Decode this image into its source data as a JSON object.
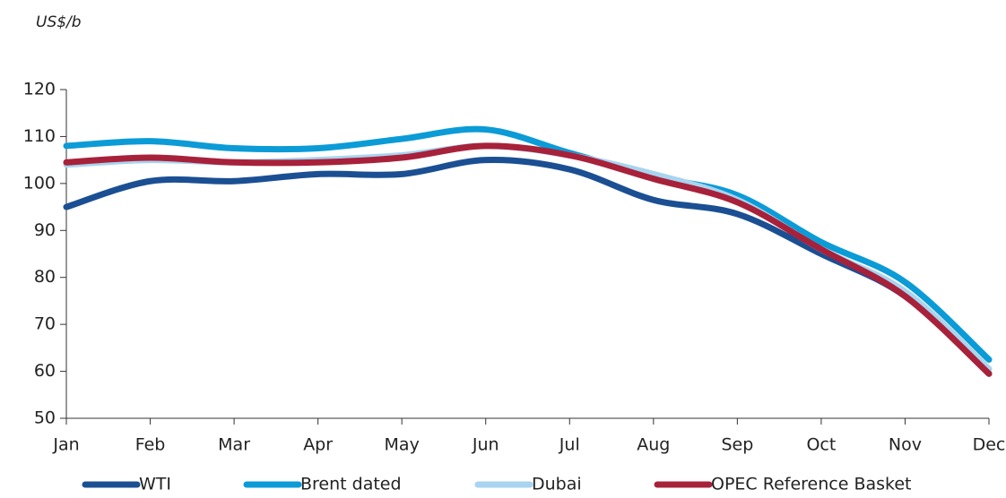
{
  "chart_data": {
    "type": "line",
    "y_label": "US$/b",
    "categories": [
      "Jan",
      "Feb",
      "Mar",
      "Apr",
      "May",
      "Jun",
      "Jul",
      "Aug",
      "Sep",
      "Oct",
      "Nov",
      "Dec"
    ],
    "series": [
      {
        "name": "WTI",
        "color": "#1b4f93",
        "values": [
          95,
          100.5,
          100.5,
          102,
          102,
          105,
          103,
          96.5,
          93.5,
          85,
          76,
          59.5
        ]
      },
      {
        "name": "Brent dated",
        "color": "#0b9bd7",
        "values": [
          108,
          109,
          107.5,
          107.5,
          109.5,
          111.5,
          106.5,
          101.5,
          97.5,
          87.5,
          79,
          62.5
        ]
      },
      {
        "name": "Dubai",
        "color": "#a8d4ef",
        "values": [
          104,
          105,
          104.5,
          105,
          106,
          108,
          106,
          102,
          96.5,
          86,
          77,
          60.5
        ]
      },
      {
        "name": "OPEC Reference Basket",
        "color": "#a8213a",
        "values": [
          104.5,
          105.5,
          104.5,
          104.5,
          105.5,
          108,
          106,
          101,
          96,
          86,
          76,
          59.5
        ]
      }
    ],
    "ylim": [
      50,
      120
    ],
    "yticks": [
      50,
      60,
      70,
      80,
      90,
      100,
      110,
      120
    ],
    "legend": "bottom"
  }
}
